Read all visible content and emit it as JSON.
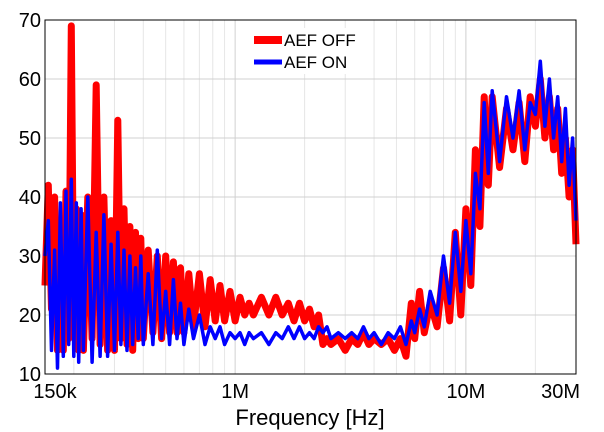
{
  "chart_data": {
    "type": "line",
    "title": "",
    "xlabel": "Frequency [Hz]",
    "ylabel": "",
    "x_scale": "log",
    "xlim": [
      150000,
      30000000
    ],
    "ylim": [
      10,
      70
    ],
    "grid": true,
    "legend_position": "top-center",
    "x_ticks": [
      {
        "value": 150000,
        "label": "150k"
      },
      {
        "value": 1000000,
        "label": "1M"
      },
      {
        "value": 10000000,
        "label": "10M"
      },
      {
        "value": 30000000,
        "label": "30M"
      }
    ],
    "y_ticks": [
      {
        "value": 10,
        "label": "10"
      },
      {
        "value": 20,
        "label": "20"
      },
      {
        "value": 30,
        "label": "30"
      },
      {
        "value": 40,
        "label": "40"
      },
      {
        "value": 50,
        "label": "50"
      },
      {
        "value": 60,
        "label": "60"
      },
      {
        "value": 70,
        "label": "70"
      }
    ],
    "series": [
      {
        "name": "AEF OFF",
        "color": "#ff0000",
        "x": [
          150000,
          155000,
          160000,
          165000,
          170000,
          175000,
          180000,
          185000,
          190000,
          195000,
          200000,
          205000,
          210000,
          215000,
          220000,
          230000,
          240000,
          250000,
          260000,
          270000,
          280000,
          290000,
          300000,
          310000,
          320000,
          330000,
          340000,
          350000,
          360000,
          370000,
          380000,
          390000,
          400000,
          420000,
          440000,
          460000,
          480000,
          500000,
          520000,
          540000,
          560000,
          580000,
          600000,
          630000,
          660000,
          700000,
          740000,
          780000,
          820000,
          860000,
          900000,
          950000,
          1000000,
          1050000,
          1100000,
          1150000,
          1200000,
          1300000,
          1400000,
          1500000,
          1600000,
          1700000,
          1800000,
          1900000,
          2000000,
          2100000,
          2200000,
          2300000,
          2400000,
          2500000,
          2600000,
          2800000,
          3000000,
          3200000,
          3400000,
          3600000,
          3800000,
          4000000,
          4300000,
          4600000,
          4900000,
          5200000,
          5500000,
          5800000,
          6000000,
          6300000,
          6600000,
          7000000,
          7500000,
          8000000,
          8500000,
          9000000,
          9500000,
          10000000,
          10500000,
          11000000,
          11500000,
          12000000,
          12500000,
          13000000,
          14000000,
          15000000,
          16000000,
          17000000,
          18000000,
          19000000,
          20000000,
          21000000,
          22000000,
          23000000,
          24000000,
          25000000,
          26000000,
          27000000,
          28000000,
          29000000,
          30000000
        ],
        "y": [
          25,
          42,
          21,
          40,
          14,
          36,
          14,
          41,
          16,
          69,
          17,
          38,
          14,
          37,
          14,
          40,
          16,
          59,
          15,
          40,
          14,
          36,
          14,
          53,
          16,
          38,
          15,
          35,
          14,
          34,
          16,
          33,
          16,
          31,
          17,
          30,
          16,
          30,
          17,
          29,
          17,
          28,
          17,
          27,
          18,
          27,
          18,
          26,
          19,
          25,
          19,
          24,
          19,
          23,
          20,
          22,
          20,
          23,
          20,
          23,
          20,
          22,
          19,
          22,
          19,
          21,
          18,
          20,
          15,
          16,
          15,
          16,
          14,
          16,
          15,
          17,
          15,
          16,
          15,
          16,
          14,
          16,
          13,
          22,
          16,
          24,
          17,
          22,
          18,
          28,
          19,
          34,
          20,
          38,
          25,
          48,
          35,
          57,
          42,
          57,
          45,
          55,
          48,
          56,
          46,
          57,
          52,
          60,
          50,
          57,
          48,
          55,
          44,
          50,
          40,
          48,
          32
        ]
      },
      {
        "name": "AEF ON",
        "color": "#0000ff",
        "x": [
          150000,
          155000,
          160000,
          165000,
          170000,
          175000,
          180000,
          185000,
          190000,
          195000,
          200000,
          205000,
          210000,
          215000,
          220000,
          230000,
          240000,
          250000,
          260000,
          270000,
          280000,
          290000,
          300000,
          310000,
          320000,
          330000,
          340000,
          350000,
          360000,
          370000,
          380000,
          390000,
          400000,
          420000,
          440000,
          460000,
          480000,
          500000,
          520000,
          540000,
          560000,
          580000,
          600000,
          630000,
          660000,
          700000,
          740000,
          780000,
          820000,
          860000,
          900000,
          950000,
          1000000,
          1050000,
          1100000,
          1150000,
          1200000,
          1300000,
          1400000,
          1500000,
          1600000,
          1700000,
          1800000,
          1900000,
          2000000,
          2100000,
          2200000,
          2300000,
          2400000,
          2500000,
          2600000,
          2800000,
          3000000,
          3200000,
          3400000,
          3600000,
          3800000,
          4000000,
          4300000,
          4600000,
          4900000,
          5200000,
          5500000,
          5800000,
          6000000,
          6300000,
          6600000,
          7000000,
          7500000,
          8000000,
          8500000,
          9000000,
          9500000,
          10000000,
          10500000,
          11000000,
          11500000,
          12000000,
          12500000,
          13000000,
          14000000,
          15000000,
          16000000,
          17000000,
          18000000,
          19000000,
          20000000,
          21000000,
          22000000,
          23000000,
          24000000,
          25000000,
          26000000,
          27000000,
          28000000,
          29000000,
          30000000
        ],
        "y": [
          30,
          36,
          14,
          31,
          11,
          39,
          13,
          41,
          15,
          43,
          13,
          39,
          12,
          38,
          14,
          40,
          12,
          34,
          13,
          37,
          13,
          32,
          14,
          34,
          15,
          31,
          14,
          30,
          15,
          28,
          16,
          30,
          15,
          27,
          15,
          31,
          16,
          24,
          15,
          26,
          16,
          22,
          15,
          21,
          16,
          20,
          15,
          18,
          16,
          18,
          15,
          17,
          16,
          17,
          15,
          17,
          16,
          17,
          15,
          17,
          16,
          18,
          16,
          18,
          16,
          17,
          16,
          18,
          17,
          18,
          16,
          17,
          16,
          17,
          16,
          18,
          16,
          17,
          15,
          17,
          16,
          18,
          15,
          19,
          17,
          21,
          18,
          24,
          20,
          30,
          22,
          34,
          24,
          36,
          27,
          44,
          38,
          56,
          44,
          58,
          46,
          57,
          50,
          58,
          48,
          56,
          54,
          63,
          52,
          60,
          50,
          57,
          46,
          55,
          42,
          50,
          36
        ]
      }
    ]
  }
}
